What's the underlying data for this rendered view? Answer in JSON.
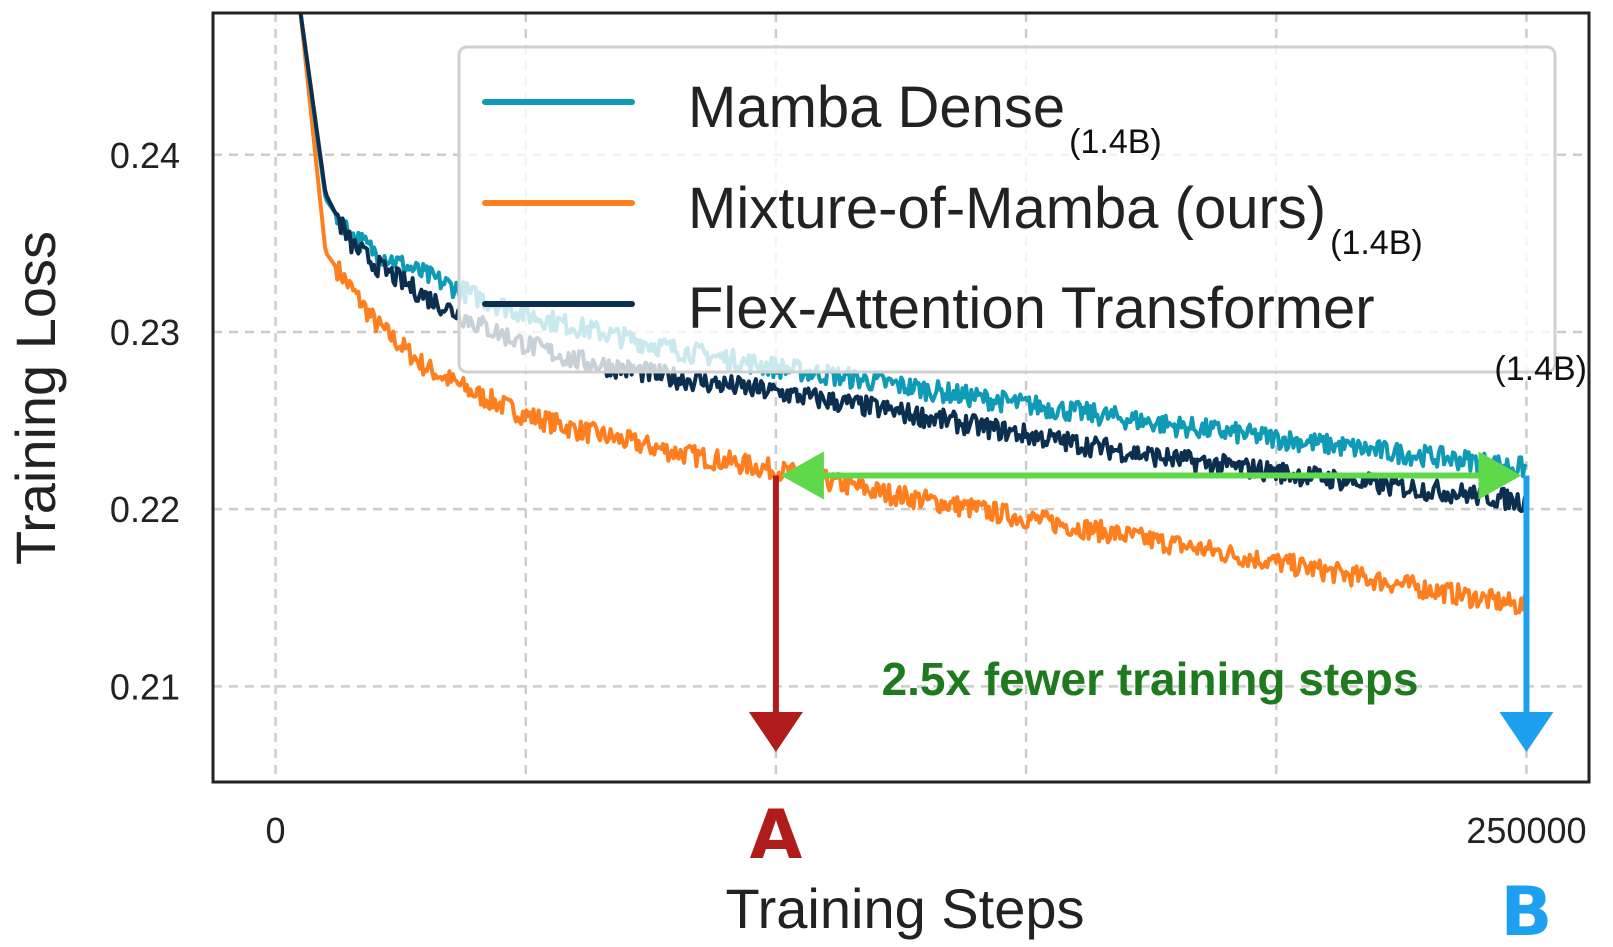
{
  "chart_data": {
    "type": "line",
    "title": "",
    "xlabel": "Training Steps",
    "ylabel": "Training Loss",
    "xlim": [
      -12500,
      262500
    ],
    "ylim": [
      0.2046,
      0.248
    ],
    "x_ticks": [
      {
        "value": 0,
        "label": "0"
      },
      {
        "value": 250000,
        "label": "250000"
      }
    ],
    "x_gridlines": [
      0,
      50000,
      100000,
      150000,
      200000,
      250000
    ],
    "y_ticks": [
      {
        "value": 0.21,
        "label": "0.21"
      },
      {
        "value": 0.22,
        "label": "0.22"
      },
      {
        "value": 0.23,
        "label": "0.23"
      },
      {
        "value": 0.24,
        "label": "0.24"
      }
    ],
    "grid": true,
    "legend_position": "top-right",
    "x": [
      5000,
      10000,
      15000,
      20000,
      30000,
      40000,
      50000,
      60000,
      80000,
      100000,
      120000,
      140000,
      160000,
      180000,
      200000,
      220000,
      240000,
      250000
    ],
    "series": [
      {
        "name": "Mamba Dense",
        "subscript": "(1.4B)",
        "color": "#0f9ab5",
        "values": [
          0.248,
          0.2375,
          0.2355,
          0.2345,
          0.2332,
          0.232,
          0.231,
          0.2303,
          0.229,
          0.228,
          0.2272,
          0.2263,
          0.2255,
          0.2247,
          0.224,
          0.2233,
          0.2227,
          0.2223
        ]
      },
      {
        "name": "Mixture-of-Mamba (ours)",
        "subscript": "(1.4B)",
        "color": "#ff7f1e",
        "values": [
          0.248,
          0.2345,
          0.2325,
          0.2305,
          0.228,
          0.2265,
          0.2253,
          0.2245,
          0.2232,
          0.2222,
          0.221,
          0.22,
          0.219,
          0.218,
          0.217,
          0.216,
          0.215,
          0.2145
        ]
      },
      {
        "name": "Flex-Attention Transformer",
        "subscript": "(1.4B)",
        "color": "#0d2f4f",
        "values": [
          0.248,
          0.2378,
          0.235,
          0.2338,
          0.232,
          0.2305,
          0.2293,
          0.2284,
          0.2274,
          0.2266,
          0.2257,
          0.2247,
          0.2237,
          0.2228,
          0.2221,
          0.2214,
          0.2208,
          0.2204
        ]
      }
    ],
    "annotations": {
      "text": "2.5x fewer training steps",
      "text_color": "#1d7a1d",
      "arrow_color": "#5fd94a",
      "loss_level": 0.2219,
      "marker_a": {
        "label": "A",
        "step": 100000,
        "color": "#b01b1b"
      },
      "marker_b": {
        "label": "B",
        "step": 250000,
        "color": "#1ea0f0"
      }
    }
  }
}
